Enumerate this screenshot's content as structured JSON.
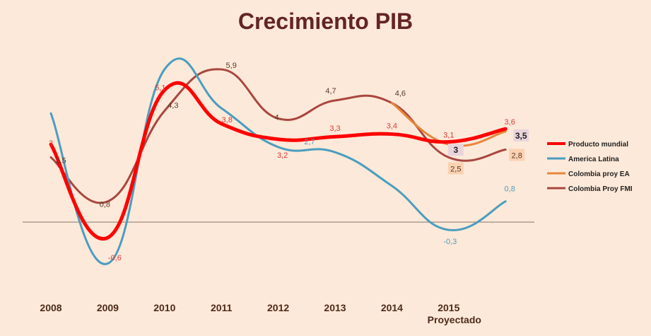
{
  "chart_data": {
    "type": "line",
    "title": "Crecimiento PIB",
    "x_labels": [
      "2008",
      "2009",
      "2010",
      "2011",
      "2012",
      "2013",
      "2014",
      "2015",
      ""
    ],
    "x_sublabel": "Proyectado",
    "x_sublabel_under": "2015",
    "ylim": [
      -2.5,
      8
    ],
    "series": [
      {
        "name": "Producto mundial",
        "color": "#ff0000",
        "width": 5,
        "values": [
          3,
          -0.6,
          5.1,
          3.8,
          3.2,
          3.3,
          3.4,
          3.1,
          3.6
        ],
        "labels": [
          "3",
          "-0,6",
          "5,1",
          "3,8",
          "3,2",
          "3,3",
          "3,4",
          "3,1",
          "3,6"
        ],
        "label_color": "#d93b3b"
      },
      {
        "name": "America Latina",
        "color": "#4a9dc0",
        "width": 3,
        "values": [
          4.2,
          -1.6,
          5.9,
          4.4,
          2.9,
          2.7,
          1.4,
          -0.3,
          0.8
        ],
        "labels": [
          "",
          "",
          "",
          "",
          "",
          "2,7",
          "",
          "-0,3",
          "0,8"
        ],
        "label_color": "#4a9dc0"
      },
      {
        "name": "Colombia proy EA",
        "color": "#e8863a",
        "width": 3,
        "values": [
          null,
          null,
          null,
          null,
          null,
          null,
          4.6,
          3,
          3.5
        ],
        "labels": [
          "",
          "",
          "",
          "",
          "",
          "",
          "",
          "3",
          "3,5"
        ],
        "label_color": "#1f1f1f"
      },
      {
        "name": "Colombia Proy FMI",
        "color": "#a9473f",
        "width": 3,
        "values": [
          2.5,
          0.8,
          4.3,
          5.9,
          4,
          4.7,
          4.6,
          2.5,
          2.8
        ],
        "labels": [
          "2,5",
          "0,8",
          "4,3",
          "5,9",
          "4",
          "4,7",
          "4,6",
          "2,5",
          "2,8"
        ],
        "label_color": "#5a3a2a"
      }
    ],
    "grid": false,
    "legend_position": "right",
    "zero_line": true
  }
}
